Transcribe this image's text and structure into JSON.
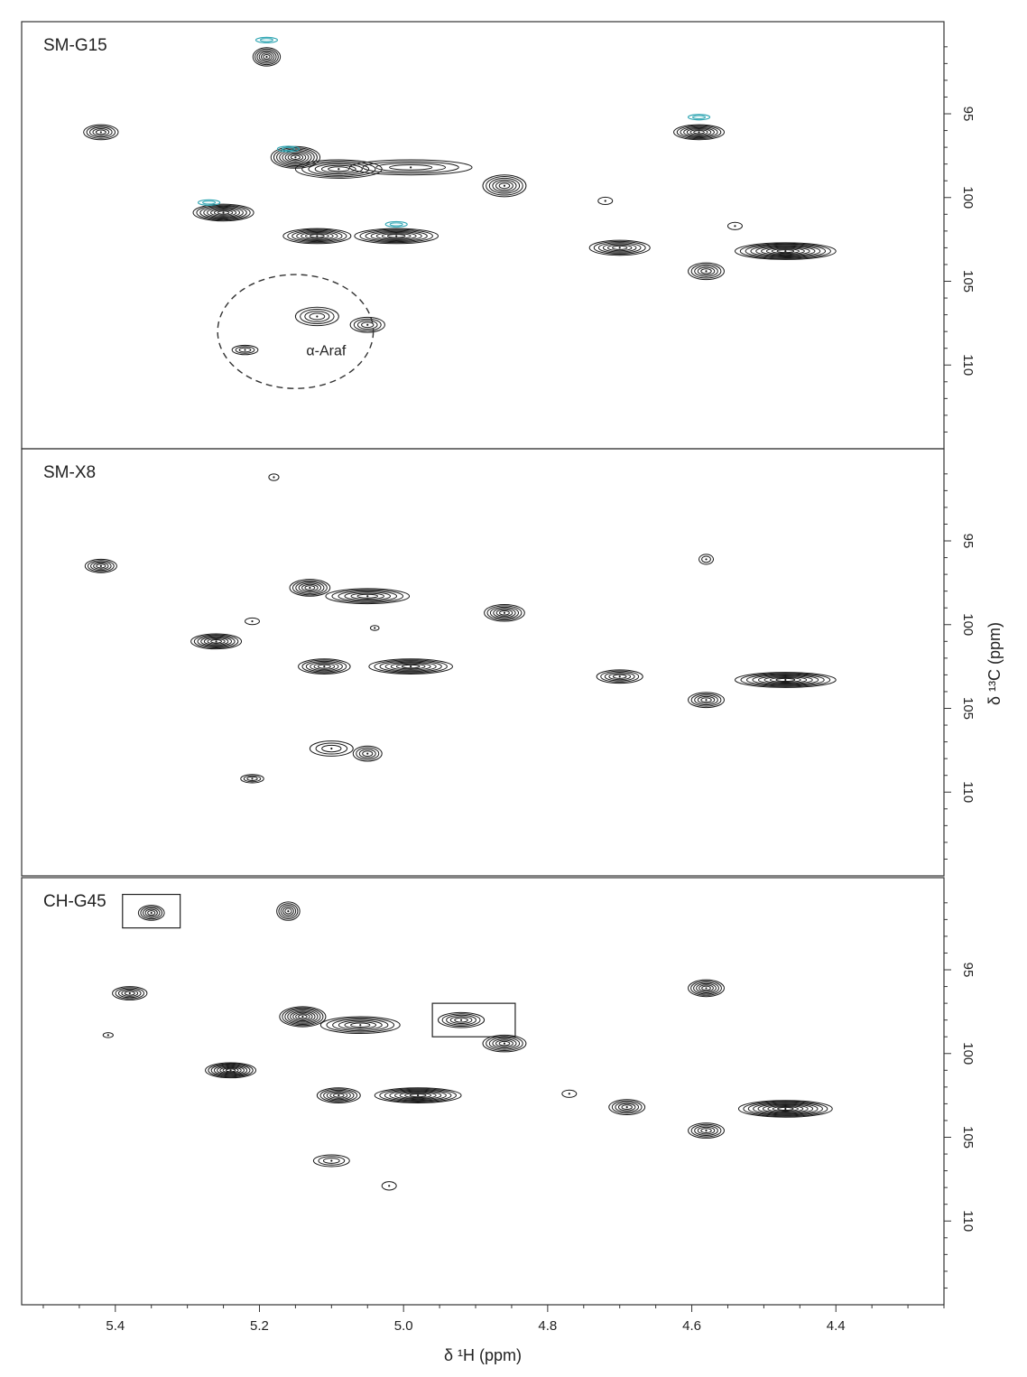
{
  "chart_data": {
    "type": "scatter",
    "subtype": "2D NMR HSQC contour plot (anomeric region)",
    "xlabel": "δ ¹H (ppm)",
    "ylabel": "δ ¹³C (ppm)",
    "x_ticks": [
      5.4,
      5.2,
      5.0,
      4.8,
      4.6,
      4.4
    ],
    "y_ticks": [
      95,
      100,
      105,
      110
    ],
    "xlim": [
      5.53,
      4.25
    ],
    "ylim": [
      89.5,
      115
    ],
    "x_reversed": true,
    "y_reversed": true,
    "grid": false,
    "colors": {
      "contour": "#1a1a1a",
      "negative_contour": "#33a7b4"
    },
    "panels": [
      {
        "name": "SM-G15",
        "peaks": [
          {
            "x": 5.19,
            "y": 91.6,
            "w": 0.019,
            "h": 0.55,
            "n": 6
          },
          {
            "x": 5.42,
            "y": 96.1,
            "w": 0.024,
            "h": 0.45,
            "n": 5
          },
          {
            "x": 5.15,
            "y": 97.6,
            "w": 0.034,
            "h": 0.65,
            "n": 8
          },
          {
            "x": 5.09,
            "y": 98.3,
            "w": 0.06,
            "h": 0.55,
            "n": 6
          },
          {
            "x": 4.99,
            "y": 98.2,
            "w": 0.085,
            "h": 0.45,
            "n": 4
          },
          {
            "x": 4.86,
            "y": 99.3,
            "w": 0.03,
            "h": 0.65,
            "n": 6
          },
          {
            "x": 5.25,
            "y": 100.9,
            "w": 0.042,
            "h": 0.5,
            "n": 8
          },
          {
            "x": 5.12,
            "y": 102.3,
            "w": 0.047,
            "h": 0.45,
            "n": 7
          },
          {
            "x": 5.01,
            "y": 102.3,
            "w": 0.058,
            "h": 0.45,
            "n": 7
          },
          {
            "x": 4.7,
            "y": 103.0,
            "w": 0.042,
            "h": 0.45,
            "n": 6
          },
          {
            "x": 4.47,
            "y": 103.2,
            "w": 0.07,
            "h": 0.5,
            "n": 9
          },
          {
            "x": 4.59,
            "y": 96.1,
            "w": 0.035,
            "h": 0.45,
            "n": 7
          },
          {
            "x": 4.58,
            "y": 104.4,
            "w": 0.025,
            "h": 0.5,
            "n": 5
          },
          {
            "x": 5.12,
            "y": 107.1,
            "w": 0.03,
            "h": 0.55,
            "n": 4
          },
          {
            "x": 5.05,
            "y": 107.6,
            "w": 0.024,
            "h": 0.45,
            "n": 4
          },
          {
            "x": 5.22,
            "y": 109.1,
            "w": 0.018,
            "h": 0.28,
            "n": 3
          },
          {
            "x": 4.72,
            "y": 100.2,
            "w": 0.01,
            "h": 0.22,
            "n": 1
          },
          {
            "x": 4.54,
            "y": 101.7,
            "w": 0.01,
            "h": 0.22,
            "n": 1
          }
        ],
        "negative_peaks": [
          {
            "x": 5.19,
            "y": 90.6
          },
          {
            "x": 4.59,
            "y": 95.2
          },
          {
            "x": 5.16,
            "y": 97.1
          },
          {
            "x": 5.27,
            "y": 100.3
          },
          {
            "x": 5.01,
            "y": 101.6
          }
        ],
        "annotations": [
          {
            "text": "α-Araf",
            "x": 5.135,
            "y": 109.1
          }
        ],
        "dashed_ellipse": {
          "cx": 5.15,
          "cy": 108.0,
          "rx": 0.108,
          "ry": 3.4
        }
      },
      {
        "name": "SM-X8",
        "peaks": [
          {
            "x": 5.18,
            "y": 91.2,
            "w": 0.007,
            "h": 0.2,
            "n": 1
          },
          {
            "x": 5.42,
            "y": 96.5,
            "w": 0.022,
            "h": 0.4,
            "n": 5
          },
          {
            "x": 4.58,
            "y": 96.1,
            "w": 0.01,
            "h": 0.3,
            "n": 2
          },
          {
            "x": 5.13,
            "y": 97.8,
            "w": 0.028,
            "h": 0.5,
            "n": 6
          },
          {
            "x": 5.05,
            "y": 98.3,
            "w": 0.058,
            "h": 0.45,
            "n": 6
          },
          {
            "x": 4.86,
            "y": 99.3,
            "w": 0.028,
            "h": 0.5,
            "n": 6
          },
          {
            "x": 5.26,
            "y": 101.0,
            "w": 0.035,
            "h": 0.45,
            "n": 7
          },
          {
            "x": 5.11,
            "y": 102.5,
            "w": 0.036,
            "h": 0.45,
            "n": 6
          },
          {
            "x": 4.99,
            "y": 102.5,
            "w": 0.058,
            "h": 0.45,
            "n": 7
          },
          {
            "x": 4.7,
            "y": 103.1,
            "w": 0.032,
            "h": 0.4,
            "n": 5
          },
          {
            "x": 4.47,
            "y": 103.3,
            "w": 0.07,
            "h": 0.45,
            "n": 8
          },
          {
            "x": 4.58,
            "y": 104.5,
            "w": 0.025,
            "h": 0.45,
            "n": 5
          },
          {
            "x": 5.1,
            "y": 107.4,
            "w": 0.03,
            "h": 0.45,
            "n": 3
          },
          {
            "x": 5.05,
            "y": 107.7,
            "w": 0.02,
            "h": 0.45,
            "n": 4
          },
          {
            "x": 5.21,
            "y": 109.2,
            "w": 0.016,
            "h": 0.25,
            "n": 3
          },
          {
            "x": 5.21,
            "y": 99.8,
            "w": 0.01,
            "h": 0.2,
            "n": 1
          },
          {
            "x": 5.04,
            "y": 100.2,
            "w": 0.006,
            "h": 0.15,
            "n": 1
          }
        ]
      },
      {
        "name": "CH-G45",
        "peaks": [
          {
            "x": 5.35,
            "y": 91.6,
            "w": 0.018,
            "h": 0.45,
            "n": 5
          },
          {
            "x": 5.16,
            "y": 91.5,
            "w": 0.016,
            "h": 0.55,
            "n": 5
          },
          {
            "x": 5.38,
            "y": 96.4,
            "w": 0.024,
            "h": 0.4,
            "n": 5
          },
          {
            "x": 4.58,
            "y": 96.1,
            "w": 0.025,
            "h": 0.5,
            "n": 6
          },
          {
            "x": 5.14,
            "y": 97.8,
            "w": 0.032,
            "h": 0.6,
            "n": 8
          },
          {
            "x": 5.06,
            "y": 98.3,
            "w": 0.055,
            "h": 0.5,
            "n": 6
          },
          {
            "x": 4.92,
            "y": 98.0,
            "w": 0.032,
            "h": 0.45,
            "n": 5
          },
          {
            "x": 4.86,
            "y": 99.4,
            "w": 0.03,
            "h": 0.5,
            "n": 6
          },
          {
            "x": 5.24,
            "y": 101.0,
            "w": 0.035,
            "h": 0.45,
            "n": 8
          },
          {
            "x": 5.09,
            "y": 102.5,
            "w": 0.03,
            "h": 0.45,
            "n": 6
          },
          {
            "x": 4.98,
            "y": 102.5,
            "w": 0.06,
            "h": 0.45,
            "n": 8
          },
          {
            "x": 4.69,
            "y": 103.2,
            "w": 0.025,
            "h": 0.45,
            "n": 5
          },
          {
            "x": 4.47,
            "y": 103.3,
            "w": 0.065,
            "h": 0.5,
            "n": 9
          },
          {
            "x": 4.58,
            "y": 104.6,
            "w": 0.025,
            "h": 0.45,
            "n": 5
          },
          {
            "x": 5.1,
            "y": 106.4,
            "w": 0.025,
            "h": 0.35,
            "n": 3
          },
          {
            "x": 5.02,
            "y": 107.9,
            "w": 0.01,
            "h": 0.25,
            "n": 1
          },
          {
            "x": 4.77,
            "y": 102.4,
            "w": 0.01,
            "h": 0.22,
            "n": 1
          },
          {
            "x": 5.41,
            "y": 98.9,
            "w": 0.007,
            "h": 0.15,
            "n": 1
          }
        ],
        "highlight_boxes": [
          {
            "x0": 5.39,
            "x1": 5.31,
            "y0": 90.5,
            "y1": 92.5
          },
          {
            "x0": 4.96,
            "x1": 4.845,
            "y0": 97.0,
            "y1": 99.0
          }
        ]
      }
    ]
  }
}
